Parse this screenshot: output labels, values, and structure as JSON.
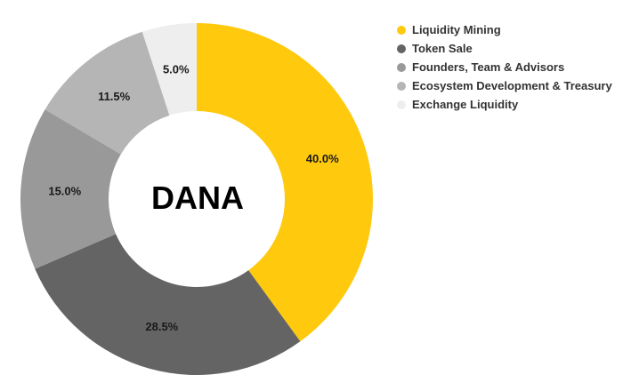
{
  "chart_data": {
    "type": "pie",
    "subtype": "donut",
    "title": "DANA",
    "center_label": "DANA",
    "start_angle_deg": 0,
    "direction": "clockwise",
    "legend_position": "right",
    "series": [
      {
        "name": "Liquidity Mining",
        "value": 40.0,
        "label": "40.0%",
        "color": "#FFC90E"
      },
      {
        "name": "Token Sale",
        "value": 28.5,
        "label": "28.5%",
        "color": "#646464"
      },
      {
        "name": "Founders, Team & Advisors",
        "value": 15.0,
        "label": "15.0%",
        "color": "#999999"
      },
      {
        "name": "Ecosystem Development & Treasury",
        "value": 11.5,
        "label": "11.5%",
        "color": "#B5B5B5"
      },
      {
        "name": "Exchange Liquidity",
        "value": 5.0,
        "label": "5.0%",
        "color": "#EEEEEE"
      }
    ]
  },
  "legend": {
    "items": [
      {
        "label": "Liquidity Mining",
        "color": "#FFC90E"
      },
      {
        "label": "Token Sale",
        "color": "#646464"
      },
      {
        "label": "Founders, Team & Advisors",
        "color": "#999999"
      },
      {
        "label": "Ecosystem Development & Treasury",
        "color": "#B5B5B5"
      },
      {
        "label": "Exchange Liquidity",
        "color": "#EEEEEE"
      }
    ]
  }
}
